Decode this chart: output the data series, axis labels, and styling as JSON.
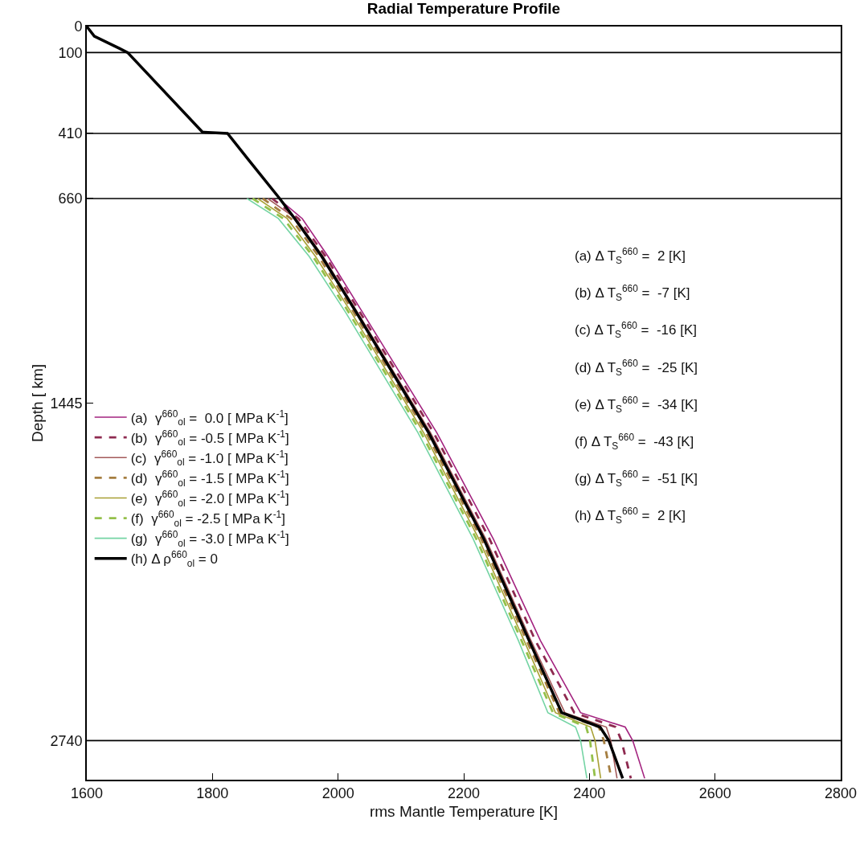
{
  "chart_data": {
    "type": "line",
    "title": "Radial Temperature Profile",
    "xlabel": "rms Mantle Temperature [K]",
    "ylabel": "Depth [ km]",
    "xlim": [
      1600,
      2800
    ],
    "xticks": [
      1600,
      1800,
      2000,
      2200,
      2400,
      2600,
      2800
    ],
    "ylim": [
      2890,
      0
    ],
    "yticks": [
      0,
      100,
      410,
      660,
      1445,
      2740
    ],
    "grid": false,
    "legend": "left",
    "series": [
      {
        "name": "(a)  γ$^{660}$$_{ol}$ =  0.0 [ MPa K$^{-1}$]",
        "color": "#a3237f",
        "line_style": "solid",
        "x": [
          1905,
          1943,
          1984,
          2039,
          2157,
          2247,
          2322,
          2386,
          2457,
          2469,
          2488
        ],
        "values": [
          660,
          737,
          882,
          1097,
          1558,
          1966,
          2356,
          2633,
          2688,
          2740,
          2885
        ]
      },
      {
        "name": "(b)  γ$^{660}$$_{ol}$ = -0.5 [ MPa K$^{-1}$]",
        "color": "#8e2a50",
        "line_style": "dashed",
        "x": [
          1895,
          1937,
          1980,
          2035,
          2152,
          2241,
          2314,
          2376,
          2442,
          2451,
          2466
        ],
        "values": [
          660,
          737,
          882,
          1097,
          1558,
          1966,
          2356,
          2633,
          2688,
          2740,
          2885
        ]
      },
      {
        "name": "(c)  γ$^{660}$$_{ol}$ = -1.0 [ MPa K$^{-1}$]",
        "color": "#a35a5a",
        "line_style": "solid",
        "x": [
          1888,
          1933,
          1976,
          2031,
          2147,
          2235,
          2307,
          2361,
          2427,
          2434,
          2444
        ],
        "values": [
          660,
          737,
          882,
          1097,
          1558,
          1966,
          2356,
          2633,
          2688,
          2740,
          2885
        ]
      },
      {
        "name": "(d)  γ$^{660}$$_{ol}$ = -1.5 [ MPa K$^{-1}$]",
        "color": "#a57e40",
        "line_style": "dashed",
        "x": [
          1880,
          1925,
          1969,
          2025,
          2140,
          2228,
          2300,
          2352,
          2415,
          2423,
          2435
        ],
        "values": [
          660,
          737,
          882,
          1097,
          1558,
          1966,
          2356,
          2633,
          2688,
          2740,
          2885
        ]
      },
      {
        "name": "(e)  γ$^{660}$$_{ol}$ = -2.0 [ MPa K$^{-1}$]",
        "color": "#a8a034",
        "line_style": "solid",
        "x": [
          1872,
          1919,
          1964,
          2021,
          2136,
          2224,
          2296,
          2346,
          2402,
          2409,
          2418
        ],
        "values": [
          660,
          737,
          882,
          1097,
          1558,
          1966,
          2356,
          2633,
          2688,
          2740,
          2885
        ]
      },
      {
        "name": "(f)  γ$^{660}$$_{ol}$ = -2.5 [ MPa K$^{-1}$]",
        "color": "#94c04a",
        "line_style": "dashed",
        "x": [
          1864,
          1913,
          1960,
          2017,
          2132,
          2220,
          2292,
          2342,
          2395,
          2401,
          2409
        ],
        "values": [
          660,
          737,
          882,
          1097,
          1558,
          1966,
          2356,
          2633,
          2688,
          2740,
          2885
        ]
      },
      {
        "name": "(g)  γ$^{660}$$_{ol}$ = -3.0 [ MPa K$^{-1}$]",
        "color": "#74d4a4",
        "line_style": "solid",
        "x": [
          1855,
          1905,
          1954,
          2012,
          2127,
          2215,
          2287,
          2334,
          2378,
          2386,
          2396
        ],
        "values": [
          660,
          737,
          882,
          1097,
          1558,
          1966,
          2356,
          2633,
          2688,
          2740,
          2885
        ]
      },
      {
        "name": "(h) Δ ρ$^{660}$$_{ol}$ = 0",
        "color": "#000000",
        "line_style": "solid",
        "x": [
          1600,
          1612,
          1651,
          1665,
          1784,
          1824,
          1858,
          1907,
          1931,
          1974,
          2029,
          2144,
          2232,
          2304,
          2356,
          2417,
          2431,
          2453
        ],
        "values": [
          0,
          37,
          83,
          100,
          405,
          410,
          513,
          660,
          737,
          882,
          1097,
          1558,
          1966,
          2356,
          2633,
          2688,
          2740,
          2885
        ]
      }
    ],
    "ref_lines": [
      {
        "axis": "y",
        "value": 100,
        "color": "#000000"
      },
      {
        "axis": "y",
        "value": 410,
        "color": "#000000"
      },
      {
        "axis": "y",
        "value": 660,
        "color": "#000000"
      },
      {
        "axis": "y",
        "value": 2740,
        "color": "#000000"
      }
    ],
    "annotations": [
      "(a) Δ T$_{S}$$^{660}$ =  2 [K]",
      "(b) Δ T$_{S}$$^{660}$ =  -7 [K]",
      "(c) Δ T$_{S}$$^{660}$ =  -16 [K]",
      "(d) Δ T$_{S}$$^{660}$ =  -25 [K]",
      "(e) Δ T$_{S}$$^{660}$ =  -34 [K]",
      "(f) Δ T$_{S}$$^{660}$ =  -43 [K]",
      "(g) Δ T$_{S}$$^{660}$ =  -51 [K]",
      "(h) Δ T$_{S}$$^{660}$ =  2 [K]"
    ]
  }
}
